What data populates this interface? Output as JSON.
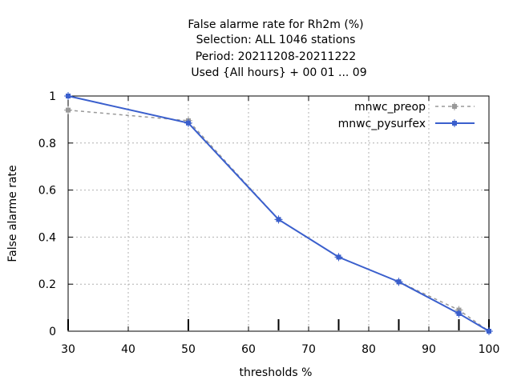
{
  "chart_data": {
    "type": "line",
    "title_lines": [
      "False alarme rate  for Rh2m (%)",
      "Selection: ALL   1046 stations",
      "Period: 20211208-20211222",
      "Used {All hours} + 00 01 ... 09"
    ],
    "xlabel": "thresholds %",
    "ylabel": "False alarme rate",
    "xlim": [
      30,
      100
    ],
    "ylim": [
      0,
      1
    ],
    "xticks": [
      30,
      40,
      50,
      60,
      70,
      80,
      90,
      100
    ],
    "yticks": [
      0,
      0.2,
      0.4,
      0.6,
      0.8,
      1
    ],
    "x_tick_labels": [
      "30",
      "40",
      "50",
      "60",
      "70",
      "80",
      "90",
      "100"
    ],
    "y_tick_labels": [
      "0",
      "0.2",
      "0.4",
      "0.6",
      "0.8",
      "1"
    ],
    "threshold_marks": [
      30,
      50,
      65,
      75,
      85,
      95,
      100
    ],
    "grid": true,
    "legend_position": "top-right",
    "series": [
      {
        "name": "mnwc_preop",
        "color": "#999999",
        "style": "dashed",
        "x": [
          30,
          50,
          65,
          75,
          85,
          95,
          100
        ],
        "y": [
          0.94,
          0.895,
          0.475,
          0.315,
          0.21,
          0.09,
          0.0
        ]
      },
      {
        "name": "mnwc_pysurfex",
        "color": "#3a5fcd",
        "style": "solid",
        "x": [
          30,
          50,
          65,
          75,
          85,
          95,
          100
        ],
        "y": [
          1.0,
          0.885,
          0.475,
          0.315,
          0.21,
          0.075,
          0.0
        ]
      }
    ]
  }
}
